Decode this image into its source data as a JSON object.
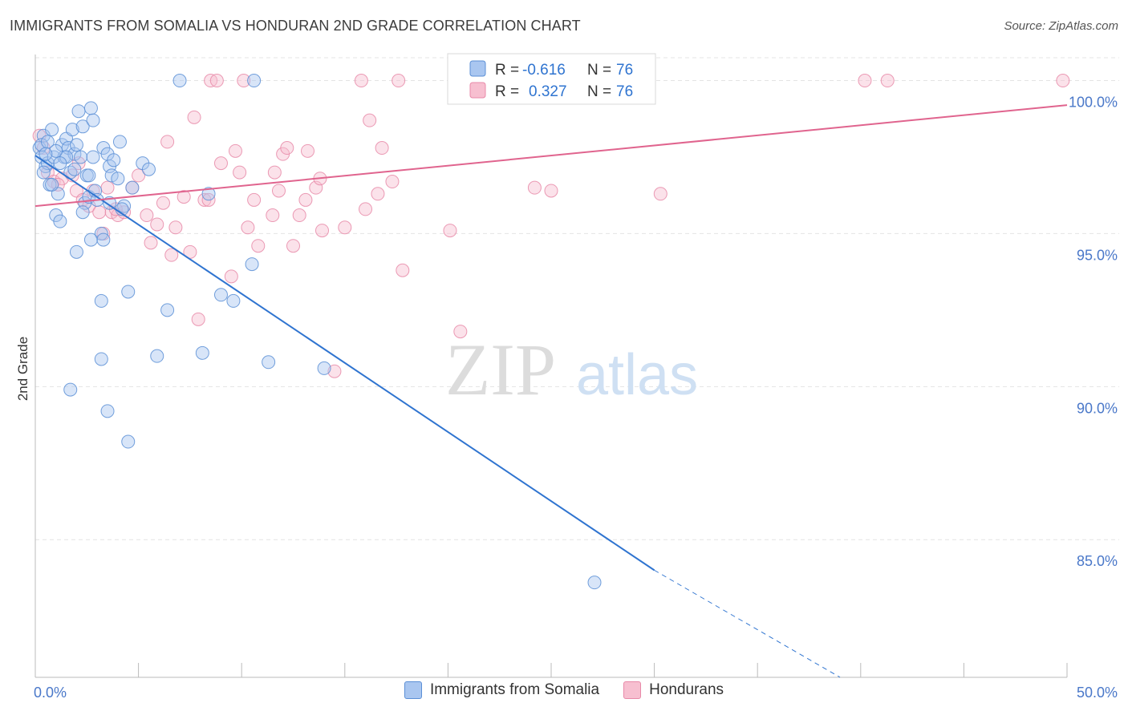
{
  "title": "IMMIGRANTS FROM SOMALIA VS HONDURAN 2ND GRADE CORRELATION CHART",
  "source": "Source: ZipAtlas.com",
  "watermark": {
    "zip": "ZIP",
    "atlas": "atlas"
  },
  "colors": {
    "blue_fill": "#a9c6f0",
    "blue_stroke": "#5b8fd6",
    "blue_line": "#2f74d0",
    "pink_fill": "#f7bfd0",
    "pink_stroke": "#e889a8",
    "pink_line": "#e0648e",
    "axis_text": "#4a78c9",
    "grid": "#e4e4e4"
  },
  "legend": {
    "rows": [
      {
        "r_label": "R =",
        "r_value": "-0.616",
        "n_label": "N =",
        "n_value": "76"
      },
      {
        "r_label": "R =",
        "r_value": "0.327",
        "n_label": "N =",
        "n_value": "76"
      }
    ]
  },
  "bottom_legend": [
    "Immigrants from Somalia",
    "Hondurans"
  ],
  "chart_data": {
    "type": "scatter",
    "xlabel": "",
    "ylabel": "2nd Grade",
    "xlim": [
      0,
      50
    ],
    "ylim": [
      80.5,
      100.8
    ],
    "x_tick_labels": [
      "0.0%",
      "50.0%"
    ],
    "y_ticks": [
      85,
      90,
      95,
      100
    ],
    "y_tick_labels": [
      "85.0%",
      "90.0%",
      "95.0%",
      "100.0%"
    ],
    "grid": true,
    "series": [
      {
        "name": "Immigrants from Somalia",
        "points": [
          [
            0.2,
            97.8
          ],
          [
            0.3,
            97.5
          ],
          [
            0.4,
            98.2
          ],
          [
            0.5,
            97.2
          ],
          [
            0.6,
            97.3
          ],
          [
            0.7,
            96.6
          ],
          [
            0.8,
            98.4
          ],
          [
            0.9,
            97.5
          ],
          [
            1.0,
            95.6
          ],
          [
            1.1,
            96.3
          ],
          [
            1.2,
            95.4
          ],
          [
            1.3,
            97.9
          ],
          [
            1.4,
            97.5
          ],
          [
            1.5,
            98.1
          ],
          [
            1.6,
            97.8
          ],
          [
            1.7,
            97.0
          ],
          [
            1.8,
            98.4
          ],
          [
            1.9,
            97.6
          ],
          [
            2.0,
            97.9
          ],
          [
            2.1,
            99.0
          ],
          [
            2.2,
            97.5
          ],
          [
            2.3,
            98.5
          ],
          [
            2.4,
            96.0
          ],
          [
            2.5,
            96.9
          ],
          [
            2.6,
            96.2
          ],
          [
            2.7,
            99.1
          ],
          [
            2.8,
            98.7
          ],
          [
            2.9,
            96.4
          ],
          [
            3.2,
            95.0
          ],
          [
            3.3,
            97.8
          ],
          [
            3.5,
            97.6
          ],
          [
            3.6,
            97.2
          ],
          [
            3.7,
            96.9
          ],
          [
            3.8,
            97.4
          ],
          [
            4.0,
            96.8
          ],
          [
            4.1,
            98.0
          ],
          [
            4.3,
            95.9
          ],
          [
            4.7,
            96.5
          ],
          [
            5.2,
            97.3
          ],
          [
            5.5,
            97.1
          ],
          [
            7.0,
            100.0
          ],
          [
            8.4,
            96.3
          ],
          [
            10.6,
            100.0
          ],
          [
            2.0,
            94.4
          ],
          [
            2.7,
            94.8
          ],
          [
            3.3,
            94.8
          ],
          [
            3.2,
            92.8
          ],
          [
            4.5,
            93.1
          ],
          [
            6.4,
            92.5
          ],
          [
            9.0,
            93.0
          ],
          [
            9.6,
            92.8
          ],
          [
            10.5,
            94.0
          ],
          [
            3.2,
            90.9
          ],
          [
            5.9,
            91.0
          ],
          [
            8.1,
            91.1
          ],
          [
            11.3,
            90.8
          ],
          [
            14.0,
            90.6
          ],
          [
            1.7,
            89.9
          ],
          [
            3.5,
            89.2
          ],
          [
            4.5,
            88.2
          ],
          [
            27.1,
            83.6
          ],
          [
            0.3,
            97.9
          ],
          [
            0.6,
            98.0
          ],
          [
            1.5,
            97.5
          ],
          [
            2.6,
            96.9
          ],
          [
            3.6,
            96.0
          ],
          [
            0.4,
            97.0
          ],
          [
            1.0,
            97.7
          ],
          [
            2.3,
            95.7
          ],
          [
            4.2,
            95.8
          ],
          [
            1.9,
            97.1
          ],
          [
            0.8,
            96.6
          ],
          [
            3.0,
            96.1
          ],
          [
            1.2,
            97.3
          ],
          [
            2.8,
            97.5
          ],
          [
            0.5,
            97.6
          ]
        ],
        "trend": {
          "x": [
            0.0,
            30.0
          ],
          "y": [
            97.55,
            84.0
          ],
          "dashed_to": {
            "x": 39.0,
            "y": 80.5
          }
        }
      },
      {
        "name": "Hondurans",
        "points": [
          [
            0.2,
            98.2
          ],
          [
            0.4,
            97.8
          ],
          [
            0.6,
            97.0
          ],
          [
            0.9,
            96.7
          ],
          [
            1.3,
            96.8
          ],
          [
            1.8,
            96.9
          ],
          [
            2.0,
            96.4
          ],
          [
            2.3,
            96.1
          ],
          [
            2.6,
            95.9
          ],
          [
            2.8,
            96.4
          ],
          [
            3.1,
            95.7
          ],
          [
            3.3,
            95.0
          ],
          [
            3.5,
            96.5
          ],
          [
            3.7,
            95.7
          ],
          [
            4.0,
            95.6
          ],
          [
            4.3,
            95.7
          ],
          [
            4.7,
            96.5
          ],
          [
            5.0,
            96.9
          ],
          [
            5.4,
            95.6
          ],
          [
            5.6,
            94.7
          ],
          [
            5.9,
            95.3
          ],
          [
            6.2,
            96.0
          ],
          [
            6.4,
            98.0
          ],
          [
            6.6,
            94.3
          ],
          [
            6.8,
            95.2
          ],
          [
            7.2,
            96.2
          ],
          [
            7.5,
            94.4
          ],
          [
            7.7,
            98.8
          ],
          [
            7.9,
            92.2
          ],
          [
            8.2,
            96.1
          ],
          [
            8.4,
            96.1
          ],
          [
            8.5,
            100.0
          ],
          [
            8.8,
            100.0
          ],
          [
            9.0,
            97.3
          ],
          [
            9.5,
            93.6
          ],
          [
            9.7,
            97.7
          ],
          [
            9.9,
            97.0
          ],
          [
            10.1,
            100.0
          ],
          [
            10.3,
            95.2
          ],
          [
            10.6,
            96.1
          ],
          [
            10.8,
            94.6
          ],
          [
            11.5,
            95.6
          ],
          [
            11.6,
            97.0
          ],
          [
            11.8,
            96.4
          ],
          [
            12.0,
            97.6
          ],
          [
            12.2,
            97.8
          ],
          [
            12.5,
            94.6
          ],
          [
            12.8,
            95.6
          ],
          [
            13.1,
            96.1
          ],
          [
            13.2,
            97.7
          ],
          [
            13.6,
            96.5
          ],
          [
            13.8,
            96.8
          ],
          [
            13.9,
            95.1
          ],
          [
            14.5,
            90.5
          ],
          [
            15.0,
            95.2
          ],
          [
            15.8,
            100.0
          ],
          [
            16.0,
            95.8
          ],
          [
            16.2,
            98.7
          ],
          [
            16.6,
            96.3
          ],
          [
            16.8,
            97.8
          ],
          [
            17.3,
            96.7
          ],
          [
            17.6,
            100.0
          ],
          [
            17.8,
            93.8
          ],
          [
            20.1,
            95.1
          ],
          [
            20.6,
            91.8
          ],
          [
            24.2,
            96.5
          ],
          [
            25.0,
            96.4
          ],
          [
            27.0,
            100.0
          ],
          [
            28.5,
            100.0
          ],
          [
            30.3,
            96.3
          ],
          [
            40.2,
            100.0
          ],
          [
            41.3,
            100.0
          ],
          [
            49.8,
            100.0
          ],
          [
            1.1,
            96.6
          ],
          [
            2.1,
            97.3
          ],
          [
            3.9,
            95.8
          ]
        ],
        "trend": {
          "x": [
            0.0,
            50.0
          ],
          "y": [
            95.9,
            99.2
          ]
        }
      }
    ]
  }
}
